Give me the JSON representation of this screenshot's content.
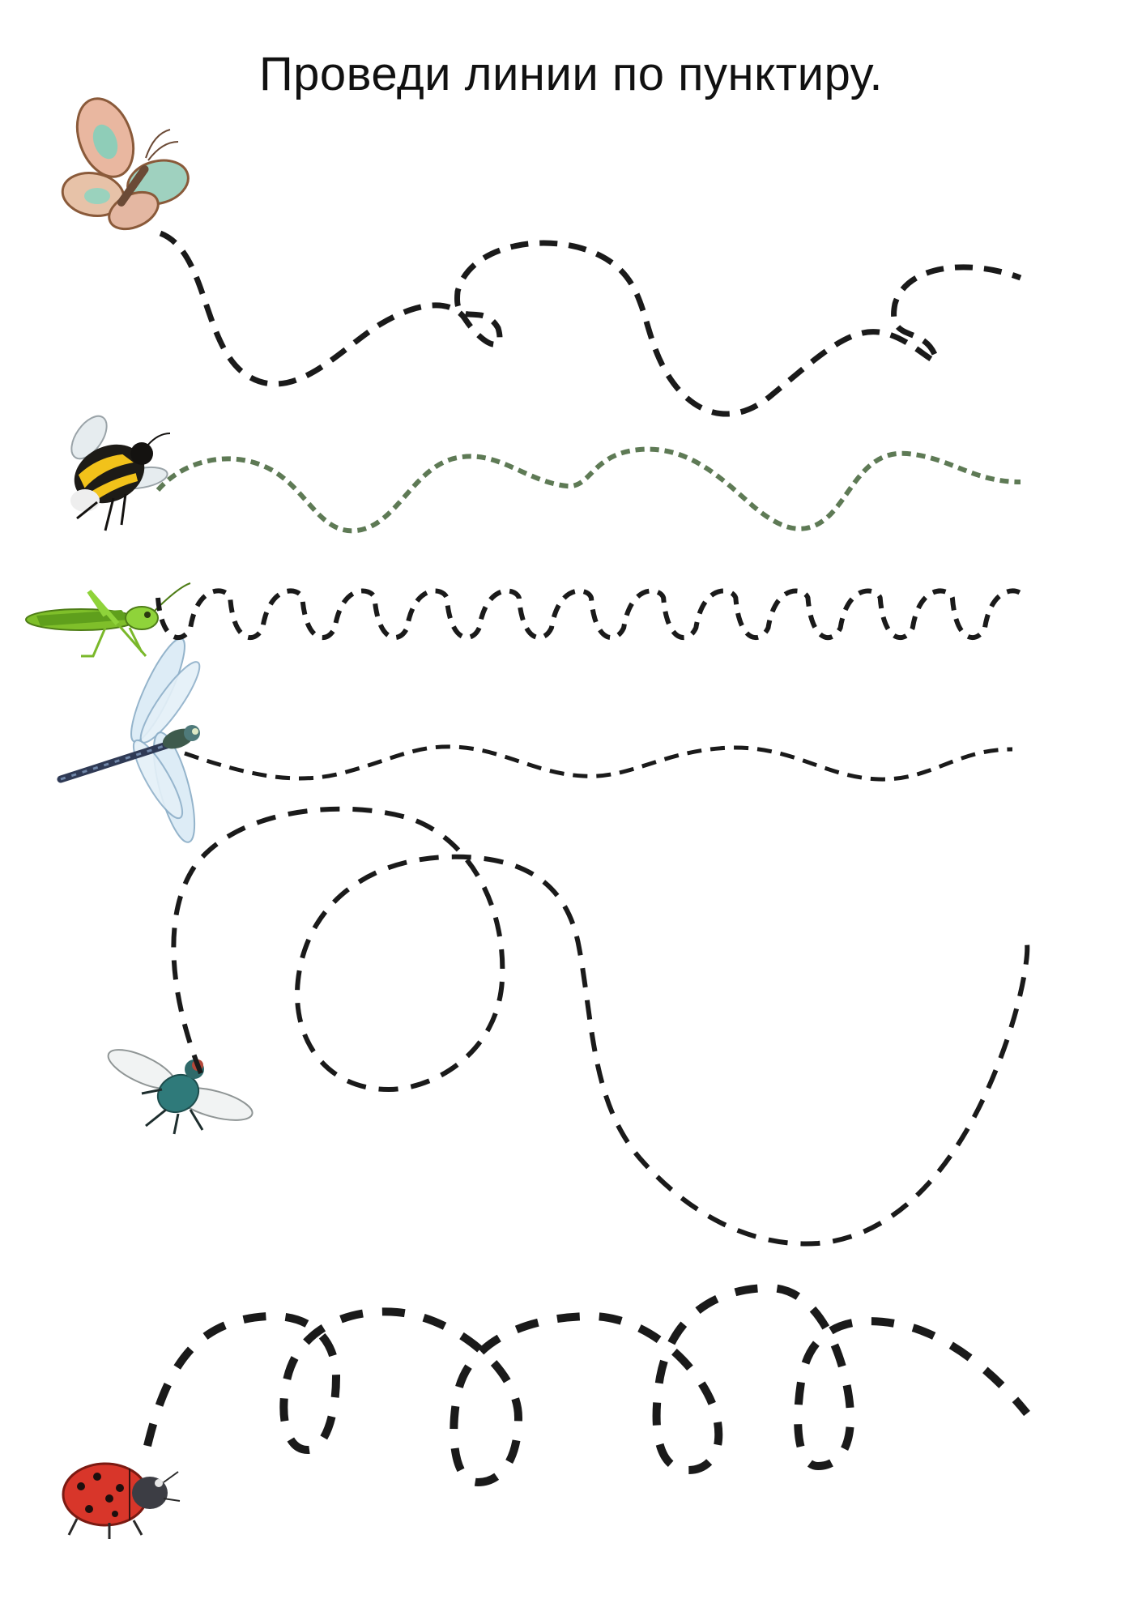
{
  "page": {
    "title": "Проведи линии по пунктиру."
  },
  "colors": {
    "ink": "#1a1a1a",
    "bee_trail": "#5e7a55",
    "paper": "#ffffff"
  },
  "insects": [
    {
      "name": "butterfly",
      "trail_color": "#1a1a1a"
    },
    {
      "name": "bumblebee",
      "trail_color": "#5e7a55"
    },
    {
      "name": "grasshopper",
      "trail_color": "#1a1a1a"
    },
    {
      "name": "dragonfly",
      "trail_color": "#1a1a1a"
    },
    {
      "name": "fly",
      "trail_color": "#1a1a1a"
    },
    {
      "name": "ladybug",
      "trail_color": "#1a1a1a"
    }
  ]
}
